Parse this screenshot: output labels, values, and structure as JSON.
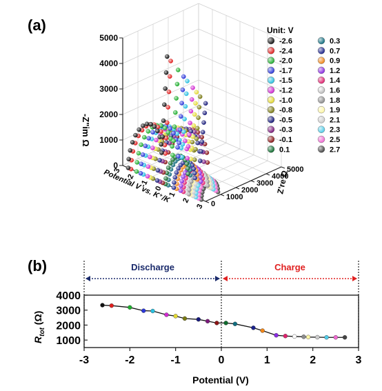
{
  "chart_data": [
    {
      "panel_label": "(a)",
      "type": "scatter",
      "title": "",
      "zlabel": "-Z\"im Ω",
      "xlabel": "Potential  V vs. K⁺/K",
      "ylabel": "Z're Ω",
      "zlim": [
        0,
        5000
      ],
      "z_ticks": [
        "0",
        "1000",
        "2000",
        "3000",
        "4000",
        "5000"
      ],
      "potential_ticks": [
        "-3",
        "-2",
        "-1",
        "0",
        "1",
        "2",
        "3"
      ],
      "zre_ticks": [
        "0",
        "1000",
        "2000",
        "3000",
        "4000",
        "5000"
      ],
      "legend_title": "Unit: V",
      "legend_placement": "top-right",
      "series": [
        {
          "name": "-2.6",
          "color": "#111111"
        },
        {
          "name": "-2.4",
          "color": "#e0201f"
        },
        {
          "name": "-2.0",
          "color": "#1fae2f"
        },
        {
          "name": "-1.7",
          "color": "#2b37d9"
        },
        {
          "name": "-1.5",
          "color": "#29c0e0"
        },
        {
          "name": "-1.2",
          "color": "#d12ad1"
        },
        {
          "name": "-1.0",
          "color": "#e3d934"
        },
        {
          "name": "-0.8",
          "color": "#7a7a12"
        },
        {
          "name": "-0.5",
          "color": "#16197a"
        },
        {
          "name": "-0.3",
          "color": "#7b1a7b"
        },
        {
          "name": "-0.1",
          "color": "#8b1515"
        },
        {
          "name": "0.1",
          "color": "#0f6b2e"
        },
        {
          "name": "0.3",
          "color": "#116e80"
        },
        {
          "name": "0.7",
          "color": "#1b238c"
        },
        {
          "name": "0.9",
          "color": "#f08619"
        },
        {
          "name": "1.2",
          "color": "#8a2be2"
        },
        {
          "name": "1.4",
          "color": "#e0226e"
        },
        {
          "name": "1.6",
          "color": "#ffffff"
        },
        {
          "name": "1.8",
          "color": "#8c8c8c"
        },
        {
          "name": "1.9",
          "color": "#fff7a8"
        },
        {
          "name": "2.1",
          "color": "#cccccc"
        },
        {
          "name": "2.3",
          "color": "#52cce8"
        },
        {
          "name": "2.5",
          "color": "#f06ad2"
        },
        {
          "name": "2.7",
          "color": "#444444"
        }
      ]
    },
    {
      "panel_label": "(b)",
      "type": "line",
      "title": "",
      "xlabel": "Potential (V)",
      "ylabel": "Rtot (Ω)",
      "ylabel_main": "R",
      "ylabel_sub": "tot",
      "ylabel_unit": " (Ω)",
      "xlim": [
        -3,
        3
      ],
      "ylim": [
        500,
        4000
      ],
      "x_ticks": [
        "-3",
        "-2",
        "-1",
        "0",
        "1",
        "2",
        "3"
      ],
      "y_ticks": [
        "1000",
        "2000",
        "3000",
        "4000"
      ],
      "regions": [
        {
          "label": "Discharge",
          "from": -3,
          "to": 0,
          "color": "#1a2a6b"
        },
        {
          "label": "Charge",
          "from": 0,
          "to": 3,
          "color": "#e02020"
        }
      ],
      "x": [
        -2.6,
        -2.4,
        -2.0,
        -1.7,
        -1.5,
        -1.2,
        -1.0,
        -0.8,
        -0.5,
        -0.3,
        -0.1,
        0.1,
        0.3,
        0.7,
        0.9,
        1.2,
        1.4,
        1.6,
        1.8,
        1.9,
        2.1,
        2.3,
        2.5,
        2.7
      ],
      "y": [
        3330,
        3300,
        3180,
        2960,
        2940,
        2690,
        2600,
        2440,
        2380,
        2260,
        2140,
        2140,
        2080,
        1820,
        1630,
        1320,
        1270,
        1240,
        1220,
        1200,
        1190,
        1180,
        1180,
        1180
      ],
      "point_colors": [
        "#111111",
        "#e0201f",
        "#1fae2f",
        "#2b37d9",
        "#29c0e0",
        "#d12ad1",
        "#e3d934",
        "#7a7a12",
        "#16197a",
        "#7b1a7b",
        "#8b1515",
        "#0f6b2e",
        "#116e80",
        "#1b238c",
        "#f08619",
        "#8a2be2",
        "#e0226e",
        "#ffffff",
        "#8c8c8c",
        "#fff7a8",
        "#cccccc",
        "#52cce8",
        "#f06ad2",
        "#444444"
      ]
    }
  ]
}
